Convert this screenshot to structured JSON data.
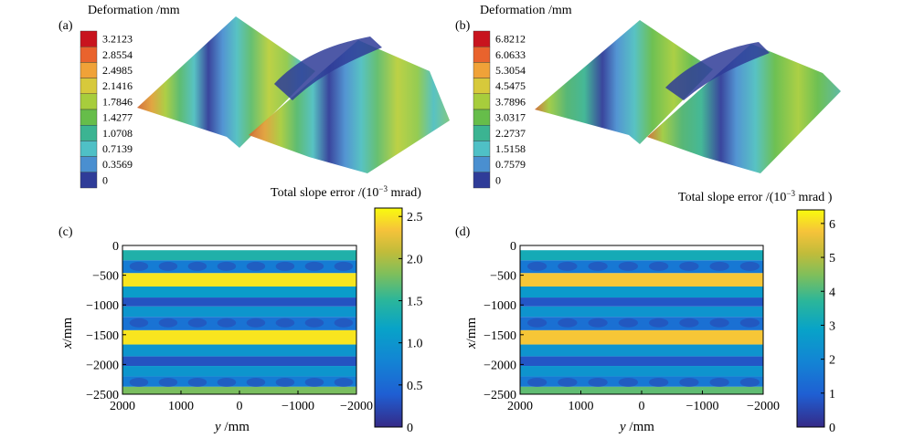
{
  "chart_data": [
    {
      "panel": "(a)",
      "type": "surface",
      "title": "Deformation /mm",
      "colorbar_ticks": [
        "3.2123",
        "2.8554",
        "2.4985",
        "2.1416",
        "1.7846",
        "1.4277",
        "1.0708",
        "0.7139",
        "0.3569",
        "0"
      ],
      "colorbar_colors": [
        "#c8141e",
        "#e9632d",
        "#f0a238",
        "#d7c93b",
        "#a7cd3c",
        "#66bd4a",
        "#3bb492",
        "#4fc0c6",
        "#4a8fd0",
        "#2f3c98"
      ],
      "range": [
        0,
        3.2123
      ]
    },
    {
      "panel": "(b)",
      "type": "surface",
      "title": "Deformation /mm",
      "colorbar_ticks": [
        "6.8212",
        "6.0633",
        "5.3054",
        "4.5475",
        "3.7896",
        "3.0317",
        "2.2737",
        "1.5158",
        "0.7579",
        "0"
      ],
      "colorbar_colors": [
        "#c8141e",
        "#e9632d",
        "#f0a238",
        "#d7c93b",
        "#a7cd3c",
        "#66bd4a",
        "#3bb492",
        "#4fc0c6",
        "#4a8fd0",
        "#2f3c98"
      ],
      "range": [
        0,
        6.8212
      ]
    },
    {
      "panel": "(c)",
      "type": "heatmap",
      "colorbar_title": "Total slope error /(10",
      "colorbar_title_sup": "−3",
      "colorbar_title_end": " mrad)",
      "colorbar_ticks": [
        2.5,
        2.0,
        1.5,
        1.0,
        0.5,
        0
      ],
      "colorbar_tick_labels": [
        "2.5",
        "2.0",
        "1.5",
        "1.0",
        "0.5",
        "0"
      ],
      "crange": [
        0,
        2.6
      ],
      "xlabel_var": "y",
      "xlabel_unit": " /mm",
      "ylabel_var": "x",
      "ylabel_unit": "/mm",
      "xticks": [
        2000,
        1000,
        0,
        -1000,
        -2000
      ],
      "xtick_labels": [
        "2000",
        "1000",
        "0",
        "−1000",
        "−2000"
      ],
      "yticks": [
        0,
        -500,
        -1000,
        -1500,
        -2000,
        -2500
      ],
      "ytick_labels": [
        "0",
        "−500",
        "−1000",
        "−1500",
        "−2000",
        "−2500"
      ],
      "xlim": [
        2000,
        -2000
      ],
      "ylim": [
        -2500,
        0
      ],
      "bands": [
        {
          "x": -150,
          "value": 1.4
        },
        {
          "x": -350,
          "value": 0.7
        },
        {
          "x": -580,
          "value": 2.5
        },
        {
          "x": -800,
          "value": 1.1
        },
        {
          "x": -950,
          "value": 0.3
        },
        {
          "x": -1100,
          "value": 1.0
        },
        {
          "x": -1300,
          "value": 0.6
        },
        {
          "x": -1550,
          "value": 2.5
        },
        {
          "x": -1780,
          "value": 1.0
        },
        {
          "x": -1950,
          "value": 0.3
        },
        {
          "x": -2100,
          "value": 1.0
        },
        {
          "x": -2300,
          "value": 0.7
        },
        {
          "x": -2450,
          "value": 1.8
        }
      ]
    },
    {
      "panel": "(d)",
      "type": "heatmap",
      "colorbar_title": "Total slope error /(10",
      "colorbar_title_sup": "−3",
      "colorbar_title_end": " mrad )",
      "colorbar_ticks": [
        6,
        5,
        4,
        3,
        2,
        1,
        0
      ],
      "colorbar_tick_labels": [
        "6",
        "5",
        "4",
        "3",
        "2",
        "1",
        "0"
      ],
      "crange": [
        0,
        6.4
      ],
      "xlabel_var": "y",
      "xlabel_unit": " /mm",
      "ylabel_var": "x",
      "ylabel_unit": "/mm",
      "xticks": [
        2000,
        1000,
        0,
        -1000,
        -2000
      ],
      "xtick_labels": [
        "2000",
        "1000",
        "0",
        "−1000",
        "−2000"
      ],
      "yticks": [
        0,
        -500,
        -1000,
        -1500,
        -2000,
        -2500
      ],
      "ytick_labels": [
        "0",
        "−500",
        "−1000",
        "−1500",
        "−2000",
        "−2500"
      ],
      "xlim": [
        2000,
        -2000
      ],
      "ylim": [
        -2500,
        0
      ],
      "bands": [
        {
          "x": -150,
          "value": 3.2
        },
        {
          "x": -350,
          "value": 1.6
        },
        {
          "x": -580,
          "value": 5.8
        },
        {
          "x": -800,
          "value": 2.6
        },
        {
          "x": -950,
          "value": 0.8
        },
        {
          "x": -1100,
          "value": 2.4
        },
        {
          "x": -1300,
          "value": 1.4
        },
        {
          "x": -1550,
          "value": 5.8
        },
        {
          "x": -1780,
          "value": 2.4
        },
        {
          "x": -1950,
          "value": 0.8
        },
        {
          "x": -2100,
          "value": 2.4
        },
        {
          "x": -2300,
          "value": 1.6
        },
        {
          "x": -2450,
          "value": 4.2
        }
      ]
    }
  ]
}
